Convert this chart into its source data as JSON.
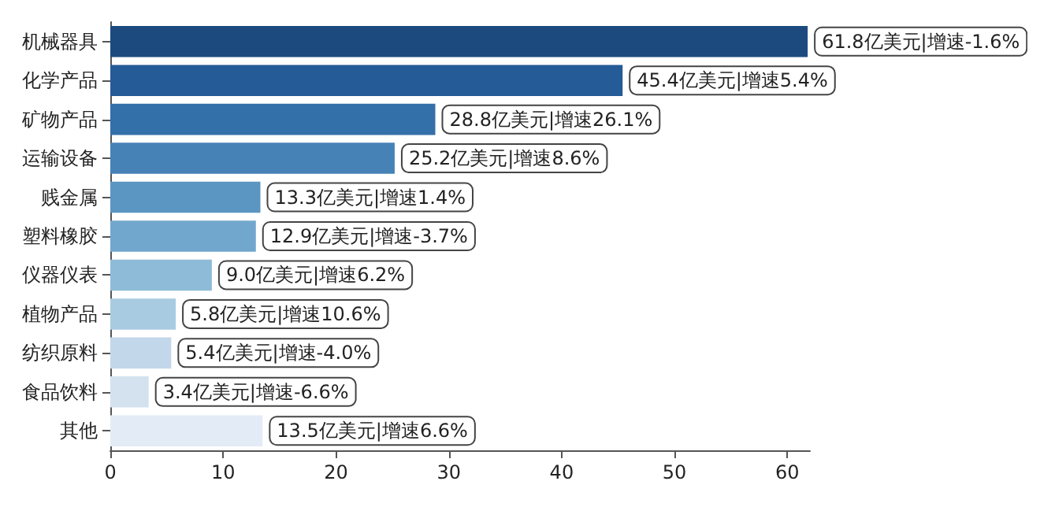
{
  "chart_data": {
    "type": "bar",
    "orientation": "horizontal",
    "categories": [
      "机械器具",
      "化学产品",
      "矿物产品",
      "运输设备",
      "贱金属",
      "塑料橡胶",
      "仪器仪表",
      "植物产品",
      "纺织原料",
      "食品饮料",
      "其他"
    ],
    "values": [
      61.8,
      45.4,
      28.8,
      25.2,
      13.3,
      12.9,
      9.0,
      5.8,
      5.4,
      3.4,
      13.5
    ],
    "colors": [
      "#1c4a7e",
      "#255b96",
      "#336fa8",
      "#4682b6",
      "#5b95c2",
      "#72a7cd",
      "#8ebbd8",
      "#a8cbe2",
      "#c3d7eb",
      "#d4e2f0",
      "#e3ecf6"
    ],
    "value_labels": [
      "61.8亿美元|增速-1.6%",
      "45.4亿美元|增速5.4%",
      "28.8亿美元|增速26.1%",
      "25.2亿美元|增速8.6%",
      "13.3亿美元|增速1.4%",
      "12.9亿美元|增速-3.7%",
      "9.0亿美元|增速6.2%",
      "5.8亿美元|增速10.6%",
      "5.4亿美元|增速-4.0%",
      "3.4亿美元|增速-6.6%",
      "13.5亿美元|增速6.6%"
    ],
    "xlim": [
      0,
      62
    ],
    "xticks": [
      0,
      10,
      20,
      30,
      40,
      50,
      60
    ]
  }
}
